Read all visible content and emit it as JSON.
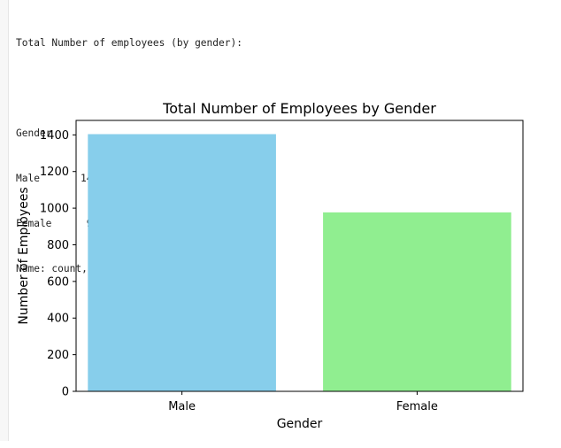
{
  "console": {
    "header": "Total Number of employees (by gender):",
    "index_name": "Gender",
    "rows": [
      {
        "label": "Male",
        "value": "1404"
      },
      {
        "label": "Female",
        "value": "977"
      }
    ],
    "footer": "Name: count, dtype: int64"
  },
  "chart_data": {
    "type": "bar",
    "title": "Total Number of Employees by Gender",
    "xlabel": "Gender",
    "ylabel": "Number of Employees",
    "categories": [
      "Male",
      "Female"
    ],
    "values": [
      1404,
      977
    ],
    "colors": [
      "#87ceeb",
      "#90ee90"
    ],
    "ylim": [
      0,
      1479
    ],
    "yticks": [
      0,
      200,
      400,
      600,
      800,
      1000,
      1200,
      1400
    ],
    "grid": false,
    "legend": false
  }
}
